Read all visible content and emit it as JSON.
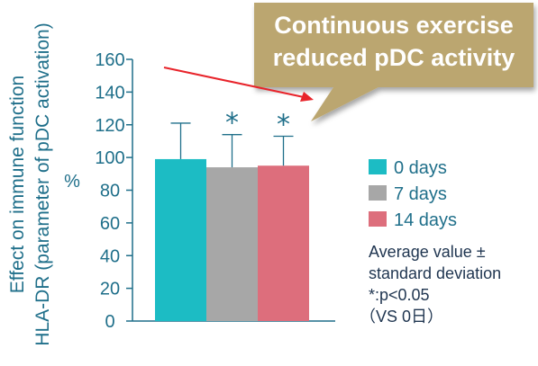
{
  "chart_data": {
    "type": "bar",
    "ylabel": [
      "Effect on immune function",
      "HLA-DR (parameter of pDC activation)"
    ],
    "unit": "%",
    "ylim": [
      0,
      160
    ],
    "ticks": [
      "0",
      "20",
      "40",
      "60",
      "80",
      "100",
      "120",
      "140",
      "160"
    ],
    "series": [
      {
        "name": "0 days",
        "value": 99,
        "error": 22,
        "significant": false,
        "color": "#1cbcc4"
      },
      {
        "name": "7 days",
        "value": 94,
        "error": 20,
        "significant": true,
        "color": "#a7a7a7"
      },
      {
        "name": "14 days",
        "value": 95,
        "error": 18,
        "significant": true,
        "color": "#dd6e7c"
      }
    ],
    "significance_marker": "*",
    "grid": false,
    "legend_position": "right"
  },
  "callout": {
    "line1": "Continuous exercise",
    "line2": "reduced pDC activity",
    "color": "#bba66f"
  },
  "arrow_color": "#e8232a",
  "notes": [
    "Average value ±",
    "standard deviation",
    "*:p<0.05",
    "（VS 0日）"
  ]
}
